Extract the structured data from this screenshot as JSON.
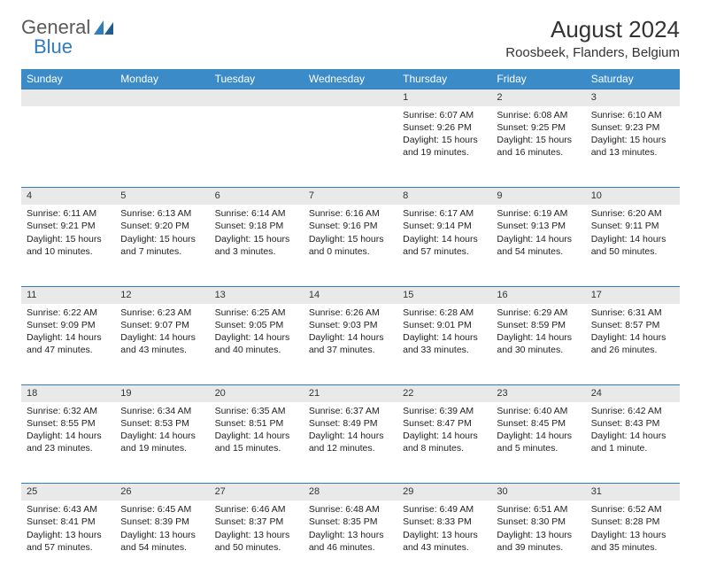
{
  "logo": {
    "text1": "General",
    "text2": "Blue"
  },
  "title": "August 2024",
  "location": "Roosbeek, Flanders, Belgium",
  "colors": {
    "header_bg": "#3b8bc8",
    "header_text": "#ffffff",
    "daynum_bg": "#e9e9e9",
    "rule": "#2d7dc0",
    "logo_gray": "#5a5a5a",
    "logo_blue": "#2d7dc0"
  },
  "weekdays": [
    "Sunday",
    "Monday",
    "Tuesday",
    "Wednesday",
    "Thursday",
    "Friday",
    "Saturday"
  ],
  "weeks": [
    [
      null,
      null,
      null,
      null,
      {
        "n": "1",
        "sunrise": "Sunrise: 6:07 AM",
        "sunset": "Sunset: 9:26 PM",
        "daylight": "Daylight: 15 hours and 19 minutes."
      },
      {
        "n": "2",
        "sunrise": "Sunrise: 6:08 AM",
        "sunset": "Sunset: 9:25 PM",
        "daylight": "Daylight: 15 hours and 16 minutes."
      },
      {
        "n": "3",
        "sunrise": "Sunrise: 6:10 AM",
        "sunset": "Sunset: 9:23 PM",
        "daylight": "Daylight: 15 hours and 13 minutes."
      }
    ],
    [
      {
        "n": "4",
        "sunrise": "Sunrise: 6:11 AM",
        "sunset": "Sunset: 9:21 PM",
        "daylight": "Daylight: 15 hours and 10 minutes."
      },
      {
        "n": "5",
        "sunrise": "Sunrise: 6:13 AM",
        "sunset": "Sunset: 9:20 PM",
        "daylight": "Daylight: 15 hours and 7 minutes."
      },
      {
        "n": "6",
        "sunrise": "Sunrise: 6:14 AM",
        "sunset": "Sunset: 9:18 PM",
        "daylight": "Daylight: 15 hours and 3 minutes."
      },
      {
        "n": "7",
        "sunrise": "Sunrise: 6:16 AM",
        "sunset": "Sunset: 9:16 PM",
        "daylight": "Daylight: 15 hours and 0 minutes."
      },
      {
        "n": "8",
        "sunrise": "Sunrise: 6:17 AM",
        "sunset": "Sunset: 9:14 PM",
        "daylight": "Daylight: 14 hours and 57 minutes."
      },
      {
        "n": "9",
        "sunrise": "Sunrise: 6:19 AM",
        "sunset": "Sunset: 9:13 PM",
        "daylight": "Daylight: 14 hours and 54 minutes."
      },
      {
        "n": "10",
        "sunrise": "Sunrise: 6:20 AM",
        "sunset": "Sunset: 9:11 PM",
        "daylight": "Daylight: 14 hours and 50 minutes."
      }
    ],
    [
      {
        "n": "11",
        "sunrise": "Sunrise: 6:22 AM",
        "sunset": "Sunset: 9:09 PM",
        "daylight": "Daylight: 14 hours and 47 minutes."
      },
      {
        "n": "12",
        "sunrise": "Sunrise: 6:23 AM",
        "sunset": "Sunset: 9:07 PM",
        "daylight": "Daylight: 14 hours and 43 minutes."
      },
      {
        "n": "13",
        "sunrise": "Sunrise: 6:25 AM",
        "sunset": "Sunset: 9:05 PM",
        "daylight": "Daylight: 14 hours and 40 minutes."
      },
      {
        "n": "14",
        "sunrise": "Sunrise: 6:26 AM",
        "sunset": "Sunset: 9:03 PM",
        "daylight": "Daylight: 14 hours and 37 minutes."
      },
      {
        "n": "15",
        "sunrise": "Sunrise: 6:28 AM",
        "sunset": "Sunset: 9:01 PM",
        "daylight": "Daylight: 14 hours and 33 minutes."
      },
      {
        "n": "16",
        "sunrise": "Sunrise: 6:29 AM",
        "sunset": "Sunset: 8:59 PM",
        "daylight": "Daylight: 14 hours and 30 minutes."
      },
      {
        "n": "17",
        "sunrise": "Sunrise: 6:31 AM",
        "sunset": "Sunset: 8:57 PM",
        "daylight": "Daylight: 14 hours and 26 minutes."
      }
    ],
    [
      {
        "n": "18",
        "sunrise": "Sunrise: 6:32 AM",
        "sunset": "Sunset: 8:55 PM",
        "daylight": "Daylight: 14 hours and 23 minutes."
      },
      {
        "n": "19",
        "sunrise": "Sunrise: 6:34 AM",
        "sunset": "Sunset: 8:53 PM",
        "daylight": "Daylight: 14 hours and 19 minutes."
      },
      {
        "n": "20",
        "sunrise": "Sunrise: 6:35 AM",
        "sunset": "Sunset: 8:51 PM",
        "daylight": "Daylight: 14 hours and 15 minutes."
      },
      {
        "n": "21",
        "sunrise": "Sunrise: 6:37 AM",
        "sunset": "Sunset: 8:49 PM",
        "daylight": "Daylight: 14 hours and 12 minutes."
      },
      {
        "n": "22",
        "sunrise": "Sunrise: 6:39 AM",
        "sunset": "Sunset: 8:47 PM",
        "daylight": "Daylight: 14 hours and 8 minutes."
      },
      {
        "n": "23",
        "sunrise": "Sunrise: 6:40 AM",
        "sunset": "Sunset: 8:45 PM",
        "daylight": "Daylight: 14 hours and 5 minutes."
      },
      {
        "n": "24",
        "sunrise": "Sunrise: 6:42 AM",
        "sunset": "Sunset: 8:43 PM",
        "daylight": "Daylight: 14 hours and 1 minute."
      }
    ],
    [
      {
        "n": "25",
        "sunrise": "Sunrise: 6:43 AM",
        "sunset": "Sunset: 8:41 PM",
        "daylight": "Daylight: 13 hours and 57 minutes."
      },
      {
        "n": "26",
        "sunrise": "Sunrise: 6:45 AM",
        "sunset": "Sunset: 8:39 PM",
        "daylight": "Daylight: 13 hours and 54 minutes."
      },
      {
        "n": "27",
        "sunrise": "Sunrise: 6:46 AM",
        "sunset": "Sunset: 8:37 PM",
        "daylight": "Daylight: 13 hours and 50 minutes."
      },
      {
        "n": "28",
        "sunrise": "Sunrise: 6:48 AM",
        "sunset": "Sunset: 8:35 PM",
        "daylight": "Daylight: 13 hours and 46 minutes."
      },
      {
        "n": "29",
        "sunrise": "Sunrise: 6:49 AM",
        "sunset": "Sunset: 8:33 PM",
        "daylight": "Daylight: 13 hours and 43 minutes."
      },
      {
        "n": "30",
        "sunrise": "Sunrise: 6:51 AM",
        "sunset": "Sunset: 8:30 PM",
        "daylight": "Daylight: 13 hours and 39 minutes."
      },
      {
        "n": "31",
        "sunrise": "Sunrise: 6:52 AM",
        "sunset": "Sunset: 8:28 PM",
        "daylight": "Daylight: 13 hours and 35 minutes."
      }
    ]
  ]
}
